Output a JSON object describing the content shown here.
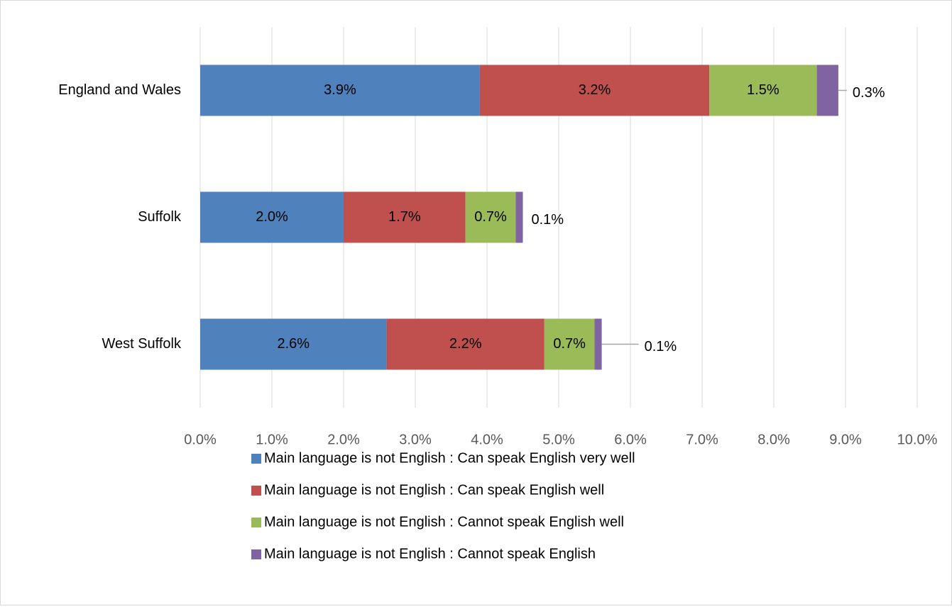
{
  "chart_data": {
    "type": "stacked_bar_horizontal",
    "categories": [
      "England and Wales",
      "Suffolk",
      "West Suffolk"
    ],
    "series": [
      {
        "name": "Main language is not English : Can speak English very well",
        "color": "#4f81bd",
        "values": [
          3.9,
          2.0,
          2.6
        ],
        "value_labels": [
          "3.9%",
          "2.0%",
          "2.6%"
        ]
      },
      {
        "name": "Main language is not English : Can speak English well",
        "color": "#c0504d",
        "values": [
          3.2,
          1.7,
          2.2
        ],
        "value_labels": [
          "3.2%",
          "1.7%",
          "2.2%"
        ]
      },
      {
        "name": "Main language is not English : Cannot speak English well",
        "color": "#9bbb59",
        "values": [
          1.5,
          0.7,
          0.7
        ],
        "value_labels": [
          "1.5%",
          "0.7%",
          "0.7%"
        ]
      },
      {
        "name": "Main language is not English : Cannot speak English",
        "color": "#8064a2",
        "values": [
          0.3,
          0.1,
          0.1
        ],
        "value_labels": [
          "0.3%",
          "0.1%",
          "0.1%"
        ]
      }
    ],
    "xlim": [
      0,
      10
    ],
    "xticks": [
      {
        "value": 0,
        "label": "0.0%"
      },
      {
        "value": 1,
        "label": "1.0%"
      },
      {
        "value": 2,
        "label": "2.0%"
      },
      {
        "value": 3,
        "label": "3.0%"
      },
      {
        "value": 4,
        "label": "4.0%"
      },
      {
        "value": 5,
        "label": "5.0%"
      },
      {
        "value": 6,
        "label": "6.0%"
      },
      {
        "value": 7,
        "label": "7.0%"
      },
      {
        "value": 8,
        "label": "8.0%"
      },
      {
        "value": 9,
        "label": "9.0%"
      },
      {
        "value": 10,
        "label": "10.0%"
      }
    ],
    "grid": true,
    "legend": "bottom"
  }
}
